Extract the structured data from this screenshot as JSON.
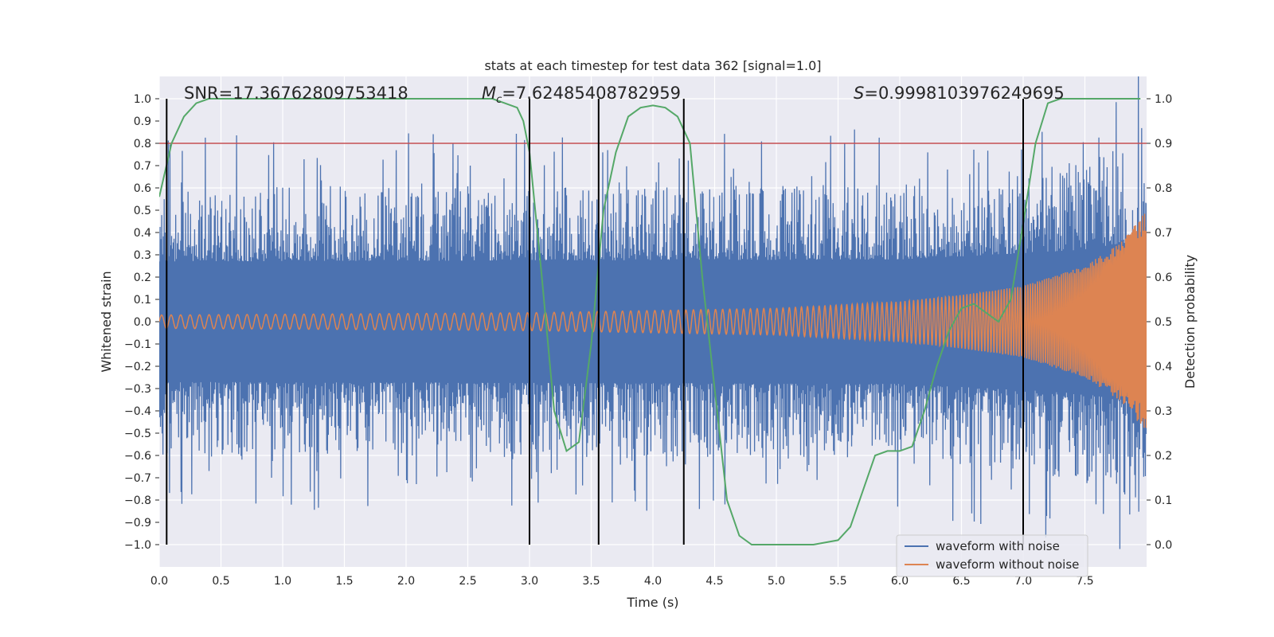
{
  "chart_data": {
    "type": "line",
    "title": "stats at each timestep for test data 362 [signal=1.0]",
    "xlabel": "Time (s)",
    "ylabel": "Whitened strain",
    "y2label": "Detection probability",
    "xlim": [
      0.0,
      8.0
    ],
    "ylim": [
      -1.1,
      1.1
    ],
    "y2lim": [
      -0.05,
      1.05
    ],
    "xticks": [
      "0.0",
      "0.5",
      "1.0",
      "1.5",
      "2.0",
      "2.5",
      "3.0",
      "3.5",
      "4.0",
      "4.5",
      "5.0",
      "5.5",
      "6.0",
      "6.5",
      "7.0",
      "7.5"
    ],
    "yticks": [
      "1.0",
      "0.9",
      "0.8",
      "0.7",
      "0.6",
      "0.5",
      "0.4",
      "0.3",
      "0.2",
      "0.1",
      "0.0",
      "−0.1",
      "−0.2",
      "−0.3",
      "−0.4",
      "−0.5",
      "−0.6",
      "−0.7",
      "−0.8",
      "−0.9",
      "−1.0"
    ],
    "y2ticks": [
      "1.0",
      "0.9",
      "0.8",
      "0.7",
      "0.6",
      "0.5",
      "0.4",
      "0.3",
      "0.2",
      "0.1",
      "0.0"
    ],
    "grid": true,
    "legend_position": "bottom-right",
    "annotations": {
      "snr": "SNR=17.36762809753418",
      "mc_symbol": "M",
      "mc_subscript": "c",
      "mc_value": "=7.62485408782959",
      "s_symbol": "S",
      "s_value": "=0.9998103976249695"
    },
    "threshold": {
      "value": 0.9,
      "axis": "y2",
      "color": "#c44e52"
    },
    "vertical_lines": {
      "x": [
        0.06,
        3.0,
        3.56,
        4.25,
        7.0
      ],
      "y_from": -1.0,
      "y_to": 1.0,
      "color": "#000000"
    },
    "series": [
      {
        "name": "waveform with noise",
        "color": "#4c72b0",
        "envelope": {
          "x": [
            0.0,
            6.0,
            7.0,
            7.5,
            7.9,
            8.0
          ],
          "amplitude": [
            0.6,
            0.62,
            0.68,
            0.72,
            0.8,
            0.95
          ]
        }
      },
      {
        "name": "waveform without noise",
        "color": "#dd8452",
        "envelope": {
          "x": [
            0.0,
            3.0,
            5.0,
            6.0,
            6.5,
            7.0,
            7.5,
            7.8,
            8.0
          ],
          "amplitude": [
            0.03,
            0.04,
            0.06,
            0.09,
            0.12,
            0.16,
            0.25,
            0.36,
            0.5
          ]
        }
      },
      {
        "name": "",
        "axis": "y2",
        "color": "#55a868",
        "x": [
          0.0,
          0.05,
          0.1,
          0.2,
          0.3,
          0.4,
          0.6,
          1.0,
          2.0,
          2.5,
          2.7,
          2.8,
          2.9,
          2.95,
          3.0,
          3.1,
          3.2,
          3.3,
          3.4,
          3.5,
          3.6,
          3.7,
          3.8,
          3.9,
          4.0,
          4.1,
          4.2,
          4.3,
          4.4,
          4.5,
          4.6,
          4.7,
          4.8,
          5.0,
          5.3,
          5.5,
          5.6,
          5.7,
          5.8,
          5.9,
          6.0,
          6.1,
          6.2,
          6.3,
          6.4,
          6.5,
          6.6,
          6.7,
          6.8,
          6.9,
          7.0,
          7.1,
          7.2,
          7.3,
          7.5,
          7.7,
          7.95
        ],
        "y": [
          0.78,
          0.84,
          0.9,
          0.96,
          0.99,
          1.0,
          1.0,
          1.0,
          1.0,
          1.0,
          1.0,
          0.99,
          0.98,
          0.95,
          0.88,
          0.6,
          0.3,
          0.21,
          0.23,
          0.45,
          0.75,
          0.88,
          0.96,
          0.98,
          0.985,
          0.98,
          0.96,
          0.9,
          0.6,
          0.35,
          0.1,
          0.02,
          0.0,
          0.0,
          0.0,
          0.01,
          0.04,
          0.12,
          0.2,
          0.21,
          0.21,
          0.22,
          0.3,
          0.4,
          0.48,
          0.53,
          0.54,
          0.52,
          0.5,
          0.55,
          0.72,
          0.9,
          0.99,
          1.0,
          1.0,
          1.0,
          1.0
        ]
      }
    ]
  }
}
